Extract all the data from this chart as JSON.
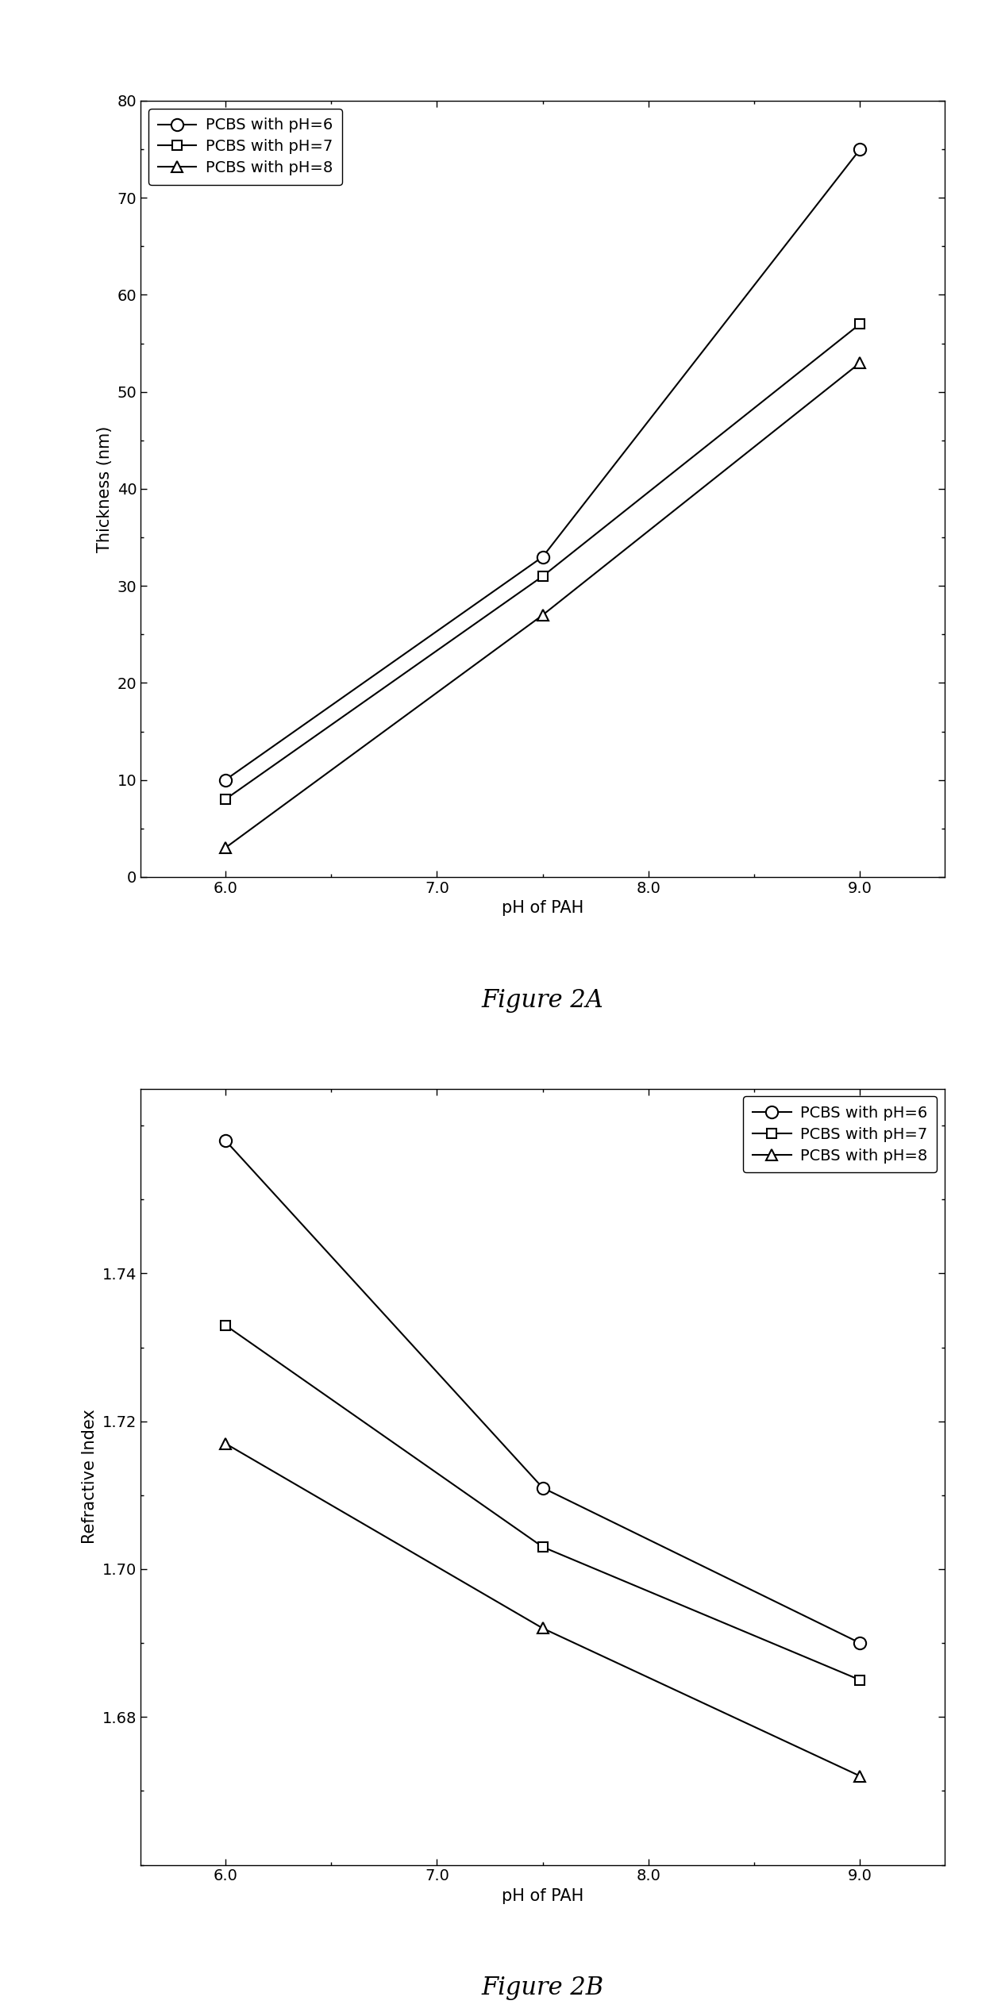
{
  "fig2a": {
    "title": "Figure 2A",
    "xlabel": "pH of PAH",
    "ylabel": "Thickness (nm)",
    "x": [
      6.0,
      7.5,
      9.0
    ],
    "series": [
      {
        "label": "PCBS with pH=6",
        "marker": "o",
        "y": [
          10,
          33,
          75
        ]
      },
      {
        "label": "PCBS with pH=7",
        "marker": "s",
        "y": [
          8,
          31,
          57
        ]
      },
      {
        "label": "PCBS with pH=8",
        "marker": "^",
        "y": [
          3,
          27,
          53
        ]
      }
    ],
    "ylim": [
      0,
      80
    ],
    "yticks": [
      0,
      10,
      20,
      30,
      40,
      50,
      60,
      70,
      80
    ],
    "xlim": [
      5.6,
      9.4
    ],
    "xticks": [
      6.0,
      7.0,
      8.0,
      9.0
    ],
    "legend_loc": "upper left"
  },
  "fig2b": {
    "title": "Figure 2B",
    "xlabel": "pH of PAH",
    "ylabel": "Refractive Index",
    "x": [
      6.0,
      7.5,
      9.0
    ],
    "series": [
      {
        "label": "PCBS with pH=6",
        "marker": "o",
        "y": [
          1.758,
          1.711,
          1.69
        ]
      },
      {
        "label": "PCBS with pH=7",
        "marker": "s",
        "y": [
          1.733,
          1.703,
          1.685
        ]
      },
      {
        "label": "PCBS with pH=8",
        "marker": "^",
        "y": [
          1.717,
          1.692,
          1.672
        ]
      }
    ],
    "ylim": [
      1.66,
      1.765
    ],
    "yticks": [
      1.68,
      1.7,
      1.72,
      1.74
    ],
    "xlim": [
      5.6,
      9.4
    ],
    "xticks": [
      6.0,
      7.0,
      8.0,
      9.0
    ],
    "legend_loc": "upper right"
  },
  "line_color": "#000000",
  "marker_size_o": 11,
  "marker_size_s": 9,
  "marker_size_t": 10,
  "line_width": 1.5,
  "legend_fontsize": 14,
  "axis_label_fontsize": 15,
  "tick_fontsize": 14,
  "caption_fontsize": 22,
  "background_color": "#ffffff"
}
